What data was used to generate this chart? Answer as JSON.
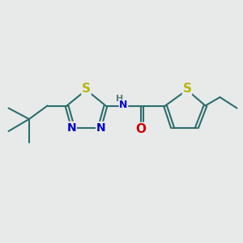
{
  "background_color": "#e8eaea",
  "bond_color": "#2d6e6e",
  "S_color": "#b8b800",
  "N_color": "#0000cc",
  "O_color": "#cc0000",
  "H_color": "#5a7a7a",
  "line_width": 1.5,
  "font_size": 9,
  "fig_size": [
    3.0,
    3.0
  ],
  "dpi": 100,
  "xlim": [
    0,
    10
  ],
  "ylim": [
    0,
    10
  ],
  "th_S": [
    7.7,
    6.3
  ],
  "th_C5": [
    8.45,
    5.65
  ],
  "th_C4": [
    8.1,
    4.75
  ],
  "th_C3": [
    7.1,
    4.75
  ],
  "th_C2": [
    6.8,
    5.65
  ],
  "eth_C1": [
    9.05,
    6.0
  ],
  "eth_C2": [
    9.75,
    5.55
  ],
  "co_C": [
    5.85,
    5.65
  ],
  "co_O": [
    5.85,
    4.7
  ],
  "nh_x": 5.1,
  "nh_y": 5.65,
  "td_S": [
    3.55,
    6.3
  ],
  "td_C5": [
    4.35,
    5.65
  ],
  "td_N4": [
    4.1,
    4.75
  ],
  "td_N3": [
    3.0,
    4.75
  ],
  "td_C2": [
    2.75,
    5.65
  ],
  "ch2_x": 1.95,
  "ch2_y": 5.65,
  "qC_x": 1.2,
  "qC_y": 5.1,
  "me1": [
    0.35,
    5.55
  ],
  "me2": [
    0.35,
    4.6
  ],
  "me3": [
    1.2,
    4.15
  ]
}
